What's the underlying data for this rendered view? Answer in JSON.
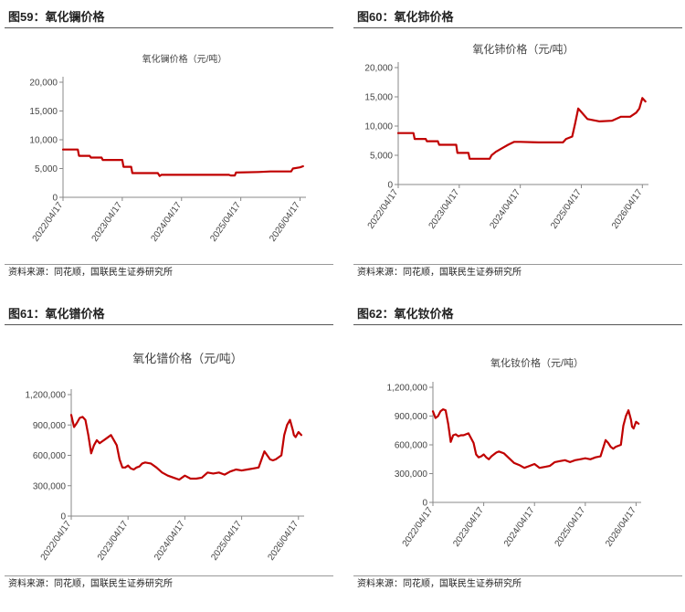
{
  "panels": [
    {
      "heading": "图59：氧化镧价格",
      "source": "资料来源：同花顺，国联民生证券研究所"
    },
    {
      "heading": "图60：氧化铈价格",
      "source": "资料来源：同花顺，国联民生证券研究所"
    },
    {
      "heading": "图61：氧化镨价格",
      "source": "资料来源：同花顺，国联民生证券研究所"
    },
    {
      "heading": "图62：氧化钕价格",
      "source": "资料来源：同花顺，国联民生证券研究所"
    }
  ],
  "chart_data": [
    {
      "type": "line",
      "title": "氧化镧价格（元/吨）",
      "color": "#C00000",
      "ylim": [
        0,
        20000
      ],
      "yticks": [
        0,
        5000,
        10000,
        15000,
        20000
      ],
      "ytick_labels": [
        "0",
        "5,000",
        "10,000",
        "15,000",
        "20,000"
      ],
      "xlim": [
        0,
        4.1
      ],
      "xticks": [
        0,
        1,
        2,
        3,
        4
      ],
      "xtick_labels": [
        "2022/04/17",
        "2023/04/17",
        "2024/04/17",
        "2025/04/17",
        "2026/04/17"
      ],
      "x": [
        0,
        0.25,
        0.27,
        0.45,
        0.47,
        0.65,
        0.67,
        1.0,
        1.02,
        1.15,
        1.17,
        1.6,
        1.63,
        1.66,
        2.8,
        2.83,
        2.9,
        2.92,
        3.3,
        3.5,
        3.85,
        3.88,
        4.0,
        4.05
      ],
      "y": [
        8300,
        8300,
        7200,
        7200,
        6900,
        6900,
        6500,
        6500,
        5300,
        5300,
        4200,
        4200,
        3700,
        3900,
        3900,
        3800,
        3800,
        4300,
        4400,
        4500,
        4500,
        5000,
        5200,
        5400
      ]
    },
    {
      "type": "line",
      "title": "氧化铈价格（元/吨）",
      "color": "#C00000",
      "ylim": [
        0,
        20000
      ],
      "yticks": [
        0,
        5000,
        10000,
        15000,
        20000
      ],
      "ytick_labels": [
        "0",
        "5,000",
        "10,000",
        "15,000",
        "20,000"
      ],
      "xlim": [
        0,
        4.1
      ],
      "xticks": [
        0,
        1,
        2,
        3,
        4
      ],
      "xtick_labels": [
        "2022/04/17",
        "2023/04/17",
        "2024/04/17",
        "2025/04/17",
        "2026/04/17"
      ],
      "x": [
        0,
        0.25,
        0.27,
        0.45,
        0.47,
        0.65,
        0.67,
        0.95,
        0.97,
        1.15,
        1.17,
        1.5,
        1.53,
        1.6,
        1.7,
        1.8,
        1.9,
        2.0,
        2.3,
        2.7,
        2.75,
        2.85,
        2.9,
        2.95,
        3.1,
        3.3,
        3.5,
        3.65,
        3.8,
        3.9,
        3.95,
        4.0,
        4.05
      ],
      "y": [
        8800,
        8800,
        7800,
        7800,
        7400,
        7400,
        6800,
        6800,
        5400,
        5400,
        4400,
        4400,
        5000,
        5600,
        6200,
        6800,
        7300,
        7300,
        7200,
        7200,
        7800,
        8200,
        10500,
        13000,
        11200,
        10800,
        10900,
        11600,
        11600,
        12300,
        13000,
        14800,
        14200
      ]
    },
    {
      "type": "line",
      "title": "氧化镨价格（元/吨）",
      "color": "#C00000",
      "ylim": [
        0,
        1200000
      ],
      "yticks": [
        0,
        300000,
        600000,
        900000,
        1200000
      ],
      "ytick_labels": [
        "0",
        "300,000",
        "600,000",
        "900,000",
        "1,200,000"
      ],
      "xlim": [
        0,
        4.1
      ],
      "xticks": [
        0,
        1,
        2,
        3,
        4
      ],
      "xtick_labels": [
        "2022/04/17",
        "2023/04/17",
        "2024/04/17",
        "2025/04/17",
        "2026/04/17"
      ],
      "x": [
        0,
        0.05,
        0.1,
        0.15,
        0.2,
        0.25,
        0.3,
        0.35,
        0.4,
        0.45,
        0.5,
        0.55,
        0.6,
        0.7,
        0.8,
        0.85,
        0.9,
        0.95,
        1.0,
        1.05,
        1.1,
        1.15,
        1.2,
        1.25,
        1.3,
        1.4,
        1.5,
        1.6,
        1.7,
        1.8,
        1.9,
        2.0,
        2.1,
        2.2,
        2.3,
        2.4,
        2.5,
        2.6,
        2.7,
        2.8,
        2.9,
        3.0,
        3.1,
        3.2,
        3.3,
        3.4,
        3.45,
        3.5,
        3.55,
        3.6,
        3.7,
        3.75,
        3.8,
        3.85,
        3.9,
        3.92,
        3.95,
        4.0,
        4.05
      ],
      "y": [
        1000000,
        880000,
        920000,
        970000,
        980000,
        950000,
        800000,
        620000,
        700000,
        750000,
        720000,
        740000,
        760000,
        800000,
        700000,
        560000,
        480000,
        480000,
        500000,
        470000,
        460000,
        480000,
        490000,
        520000,
        530000,
        520000,
        480000,
        430000,
        400000,
        380000,
        360000,
        400000,
        370000,
        370000,
        380000,
        430000,
        420000,
        430000,
        410000,
        440000,
        460000,
        450000,
        460000,
        470000,
        480000,
        640000,
        600000,
        560000,
        550000,
        560000,
        600000,
        800000,
        900000,
        950000,
        850000,
        800000,
        780000,
        830000,
        800000
      ]
    },
    {
      "type": "line",
      "title": "氧化钕价格（元/吨）",
      "color": "#C00000",
      "ylim": [
        0,
        1200000
      ],
      "yticks": [
        0,
        300000,
        600000,
        900000,
        1200000
      ],
      "ytick_labels": [
        "0",
        "300,000",
        "600,000",
        "900,000",
        "1,200,000"
      ],
      "xlim": [
        0,
        4.1
      ],
      "xticks": [
        0,
        1,
        2,
        3,
        4
      ],
      "xtick_labels": [
        "2022/04/17",
        "2023/04/17",
        "2024/04/17",
        "2025/04/17",
        "2026/04/17"
      ],
      "x": [
        0,
        0.05,
        0.1,
        0.15,
        0.2,
        0.25,
        0.3,
        0.35,
        0.4,
        0.45,
        0.5,
        0.55,
        0.6,
        0.7,
        0.8,
        0.85,
        0.9,
        0.95,
        1.0,
        1.05,
        1.1,
        1.15,
        1.2,
        1.25,
        1.3,
        1.4,
        1.5,
        1.6,
        1.7,
        1.8,
        1.9,
        2.0,
        2.1,
        2.2,
        2.3,
        2.4,
        2.5,
        2.6,
        2.7,
        2.8,
        2.9,
        3.0,
        3.1,
        3.2,
        3.3,
        3.4,
        3.45,
        3.5,
        3.55,
        3.6,
        3.7,
        3.75,
        3.8,
        3.85,
        3.9,
        3.92,
        3.95,
        4.0,
        4.05
      ],
      "y": [
        950000,
        880000,
        900000,
        950000,
        970000,
        960000,
        820000,
        630000,
        700000,
        710000,
        690000,
        700000,
        700000,
        720000,
        620000,
        500000,
        470000,
        480000,
        500000,
        470000,
        450000,
        480000,
        500000,
        520000,
        530000,
        510000,
        460000,
        410000,
        390000,
        360000,
        380000,
        400000,
        360000,
        370000,
        380000,
        420000,
        430000,
        440000,
        420000,
        440000,
        450000,
        460000,
        450000,
        470000,
        480000,
        650000,
        620000,
        580000,
        560000,
        580000,
        600000,
        800000,
        900000,
        960000,
        860000,
        790000,
        770000,
        840000,
        820000
      ]
    }
  ]
}
